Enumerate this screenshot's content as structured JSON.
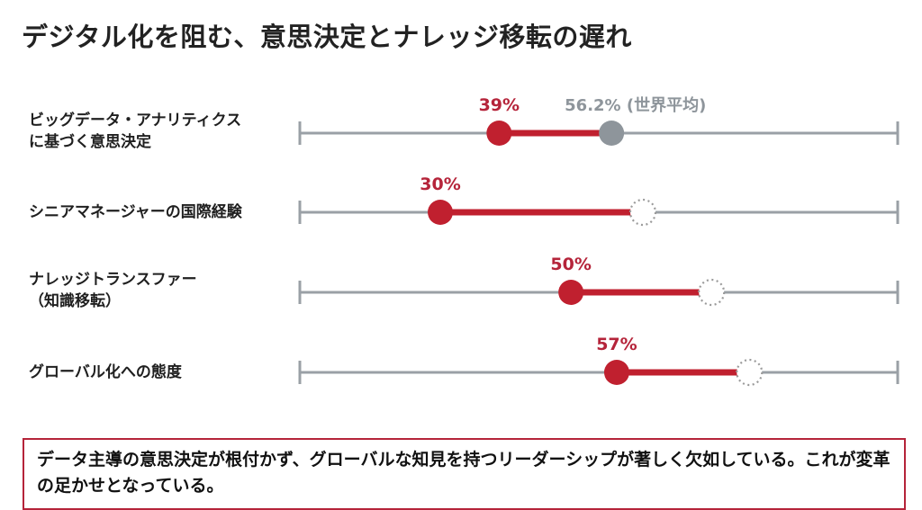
{
  "title": "デジタル化を阻む、意思決定とナレッジ移転の遅れ",
  "chart_data": {
    "type": "dumbbell",
    "title": "デジタル化を阻む、意思決定とナレッジ移転の遅れ",
    "xlim": [
      8.5,
      100
    ],
    "grid": false,
    "rows": [
      {
        "label_lines": [
          "ビッグデータ・アナリティクス",
          "に基づく意思決定"
        ],
        "value": 39,
        "value_label": "39%",
        "benchmark": 56.2,
        "benchmark_label": "56.2% (世界平均)",
        "benchmark_style": "solid"
      },
      {
        "label_lines": [
          "シニアマネージャーの国際経験"
        ],
        "value": 30,
        "value_label": "30%",
        "benchmark": 61,
        "benchmark_style": "dotted"
      },
      {
        "label_lines": [
          "ナレッジトランスファー",
          "（知識移転）"
        ],
        "value": 50,
        "value_label": "50%",
        "benchmark": 71.5,
        "benchmark_style": "dotted"
      },
      {
        "label_lines": [
          "グローバル化への態度"
        ],
        "value": 57,
        "value_label": "57%",
        "benchmark": 77.3,
        "benchmark_style": "dotted"
      }
    ]
  },
  "note": "データ主導の意思決定が根付かず、グローバルな知見を持つリーダーシップが著しく欠如している。これが変革の足かせとなっている。",
  "colors": {
    "accent": "#c0202f",
    "axis": "#9aa0a6",
    "benchmark": "#8e959b"
  }
}
